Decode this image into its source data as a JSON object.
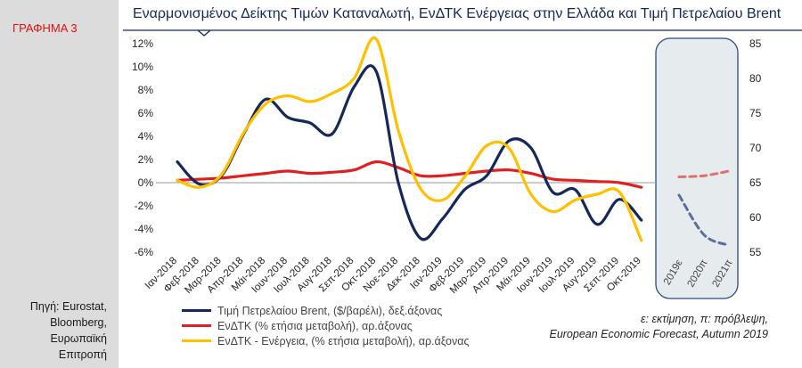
{
  "sidebar": {
    "figure_label": "ΓΡΑΦΗΜΑ 3",
    "source": "Πηγή: Eurostat,\nBloomberg,\nΕυρωπαϊκή\nΕπιτροπή"
  },
  "notes": {
    "line1": "ε: εκτίμηση, π: πρόβλεψη,",
    "line2": "European Economic Forecast, Autumn 2019"
  },
  "chart_data": {
    "type": "line",
    "title": "Εναρμονισμένος Δείκτης Τιμών Καταναλωτή, ΕνΔΤΚ Ενέργειας στην Ελλάδα και Τιμή Πετρελαίου Brent",
    "categories": [
      "Ιαν-2018",
      "Φεβ-2018",
      "Μαρ-2018",
      "Απρ-2018",
      "Μάι-2018",
      "Ιουν-2018",
      "Ιουλ-2018",
      "Αυγ-2018",
      "Σεπ-2018",
      "Οκτ-2018",
      "Νοε-2018",
      "Δεκ-2018",
      "Ιαν-2019",
      "Φεβ-2019",
      "Μαρ-2019",
      "Απρ-2019",
      "Μάι-2019",
      "Ιουν-2019",
      "Ιουλ-2019",
      "Αυγ-2019",
      "Σεπ-2019",
      "Οκτ-2019"
    ],
    "forecast_categories": [
      "2019ε",
      "2020π",
      "2021π"
    ],
    "y_left": {
      "min": -6,
      "max": 12,
      "ticks": [
        -6,
        -4,
        -2,
        0,
        2,
        4,
        6,
        8,
        10,
        12
      ],
      "format": "%"
    },
    "y_right": {
      "min": 55,
      "max": 85,
      "ticks": [
        55,
        60,
        65,
        70,
        75,
        80,
        85
      ]
    },
    "series": [
      {
        "name": "Τιμή Πετρελαίου Brent, ($/βαρέλι), δεξ.άξονας",
        "axis": "right",
        "color": "#14285a",
        "values": [
          68.0,
          64.8,
          66.0,
          72.0,
          77.0,
          74.4,
          73.6,
          72.0,
          78.8,
          81.0,
          65.0,
          57.0,
          59.8,
          64.0,
          66.0,
          71.0,
          70.0,
          63.6,
          64.0,
          59.0,
          62.6,
          59.6
        ],
        "forecast": [
          63.2,
          57.5,
          56.0
        ]
      },
      {
        "name": "ΕνΔΤΚ  (% ετήσια μεταβολή), αρ.άξονας",
        "axis": "left",
        "color": "#e02020",
        "values": [
          0.2,
          0.3,
          0.4,
          0.6,
          0.8,
          1.0,
          0.8,
          0.9,
          1.1,
          1.8,
          1.3,
          0.6,
          0.6,
          0.8,
          1.0,
          1.1,
          0.8,
          0.3,
          0.2,
          0.1,
          0.0,
          -0.4
        ],
        "forecast": [
          0.5,
          0.6,
          1.0
        ]
      },
      {
        "name": "ΕνΔΤΚ  - Ενέργεια,  (% ετήσια μεταβολή), αρ.άξονας",
        "axis": "left",
        "color": "#ffc000",
        "values": [
          0.2,
          -0.4,
          0.7,
          4.3,
          6.8,
          7.5,
          7.0,
          7.7,
          9.0,
          12.4,
          4.5,
          -0.5,
          -1.5,
          0.5,
          3.2,
          3.0,
          -1.0,
          -2.5,
          -1.5,
          -1.0,
          -0.8,
          -5.0
        ],
        "forecast": []
      }
    ]
  }
}
